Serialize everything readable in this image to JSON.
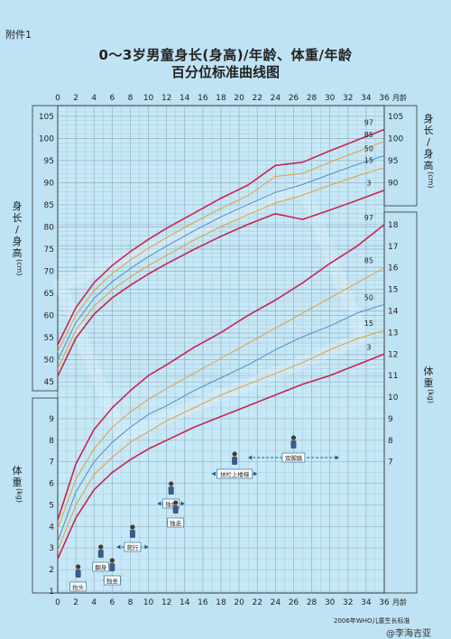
{
  "header": {
    "annex": "附件1",
    "title_line1": "0～3岁男童身长(身高)/年龄、体重/年龄",
    "title_line2": "百分位标准曲线图"
  },
  "axis_labels": {
    "x_unit": "月龄",
    "height_label": "身长/身高(cm)",
    "height_label_left": [
      "身",
      "长",
      "/",
      "身",
      "高",
      "(cm)"
    ],
    "height_label_right": [
      "身",
      "长",
      "/",
      "身",
      "高",
      "(cm)"
    ],
    "weight_label": "体重(kg)",
    "weight_label_left": [
      "体",
      "重",
      "(kg)"
    ],
    "weight_label_right": [
      "体",
      "重",
      "(kg)"
    ]
  },
  "footer": {
    "source": "2006年WHO儿童生长标准",
    "watermark": "@李海吉亚"
  },
  "colors": {
    "background": "#bfe3f4",
    "plot_background": "#c6e8f7",
    "grid": "#8aa4b4",
    "p97": "#c8254f",
    "p85": "#e0a03a",
    "p50": "#4a8ec8",
    "p15": "#e0a03a",
    "p3": "#c8254f"
  },
  "milestones": [
    {
      "label": "抬头",
      "start": 1.5,
      "end": 3.0
    },
    {
      "label": "翻身",
      "start": 4.0,
      "end": 5.5
    },
    {
      "label": "独坐",
      "start": 5.0,
      "end": 7.0
    },
    {
      "label": "爬行",
      "start": 6.5,
      "end": 10.0
    },
    {
      "label": "独站",
      "start": 11.0,
      "end": 14.0
    },
    {
      "label": "独走",
      "start": 12.0,
      "end": 14.0
    },
    {
      "label": "扶栏上楼梯",
      "start": 17.0,
      "end": 22.0
    },
    {
      "label": "双脚跳",
      "start": 21.0,
      "end": 31.0
    }
  ],
  "chart_data": [
    {
      "type": "line",
      "title": "身长(身高)/年龄",
      "xlabel": "月龄",
      "ylabel": "身长/身高(cm)",
      "xlim": [
        0,
        36
      ],
      "ylim": [
        43,
        107
      ],
      "x_ticks": [
        0,
        2,
        4,
        6,
        8,
        10,
        12,
        14,
        16,
        18,
        20,
        22,
        24,
        26,
        28,
        30,
        32,
        34,
        36
      ],
      "x": [
        0,
        2,
        4,
        6,
        8,
        10,
        12,
        15,
        18,
        21,
        24,
        27,
        30,
        33,
        36
      ],
      "series": [
        {
          "name": "97",
          "values": [
            53.4,
            61.8,
            67.4,
            71.3,
            74.4,
            77.2,
            79.7,
            83.1,
            86.5,
            89.5,
            93.9,
            94.6,
            97.2,
            99.6,
            102.0
          ]
        },
        {
          "name": "85",
          "values": [
            51.8,
            60.1,
            65.6,
            69.5,
            72.5,
            75.2,
            77.6,
            81.0,
            84.2,
            87.1,
            91.4,
            92.1,
            94.6,
            97.0,
            99.3
          ]
        },
        {
          "name": "50",
          "values": [
            49.9,
            58.4,
            63.9,
            67.6,
            70.6,
            73.3,
            75.7,
            79.1,
            82.3,
            85.1,
            87.8,
            89.6,
            91.9,
            94.1,
            96.1
          ]
        },
        {
          "name": "15",
          "values": [
            48.0,
            56.7,
            62.1,
            65.8,
            68.7,
            71.3,
            73.6,
            77.0,
            80.1,
            82.8,
            85.4,
            87.2,
            89.4,
            91.5,
            93.4
          ]
        },
        {
          "name": "3",
          "values": [
            46.3,
            54.9,
            60.3,
            64.0,
            66.8,
            69.4,
            71.7,
            74.9,
            77.9,
            80.6,
            83.0,
            81.7,
            83.8,
            86.0,
            88.3
          ]
        }
      ]
    },
    {
      "type": "line",
      "title": "体重/年龄",
      "xlabel": "月龄",
      "ylabel": "体重(kg)",
      "xlim": [
        0,
        36
      ],
      "ylim": [
        1,
        18.5
      ],
      "x": [
        0,
        2,
        4,
        6,
        8,
        10,
        12,
        15,
        18,
        21,
        24,
        27,
        30,
        33,
        36
      ],
      "series": [
        {
          "name": "97",
          "values": [
            4.3,
            6.9,
            8.5,
            9.5,
            10.3,
            11.0,
            11.5,
            12.3,
            13.0,
            13.8,
            14.5,
            15.3,
            16.2,
            17.0,
            18.0
          ]
        },
        {
          "name": "85",
          "values": [
            3.9,
            6.2,
            7.6,
            8.6,
            9.3,
            9.9,
            10.4,
            11.1,
            11.8,
            12.5,
            13.2,
            13.9,
            14.6,
            15.3,
            16.0
          ]
        },
        {
          "name": "50",
          "values": [
            3.3,
            5.6,
            7.0,
            7.9,
            8.6,
            9.2,
            9.6,
            10.3,
            10.9,
            11.5,
            12.2,
            12.8,
            13.3,
            13.9,
            14.3
          ]
        },
        {
          "name": "15",
          "values": [
            2.9,
            5.0,
            6.4,
            7.2,
            7.9,
            8.4,
            8.9,
            9.5,
            10.1,
            10.6,
            11.1,
            11.6,
            12.2,
            12.7,
            13.1
          ]
        },
        {
          "name": "3",
          "values": [
            2.5,
            4.4,
            5.7,
            6.5,
            7.1,
            7.6,
            8.0,
            8.6,
            9.1,
            9.6,
            10.1,
            10.6,
            11.0,
            11.5,
            12.0
          ]
        }
      ]
    }
  ]
}
